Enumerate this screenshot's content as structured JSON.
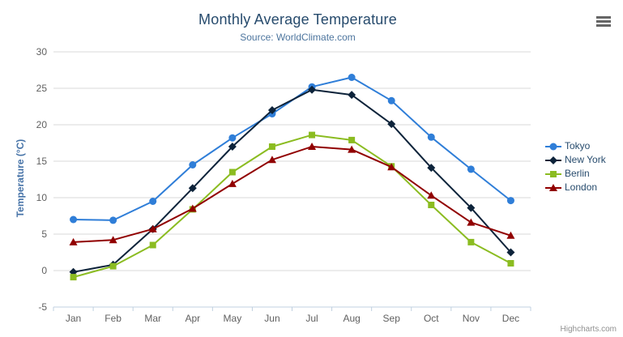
{
  "credits": "Highcharts.com",
  "export_menu_icon": "hamburger-icon",
  "chart_data": {
    "type": "line",
    "title": "Monthly Average Temperature",
    "subtitle": "Source: WorldClimate.com",
    "categories": [
      "Jan",
      "Feb",
      "Mar",
      "Apr",
      "May",
      "Jun",
      "Jul",
      "Aug",
      "Sep",
      "Oct",
      "Nov",
      "Dec"
    ],
    "series": [
      {
        "name": "Tokyo",
        "color": "#2f7ed8",
        "marker": "circle",
        "values": [
          7.0,
          6.9,
          9.5,
          14.5,
          18.2,
          21.5,
          25.2,
          26.5,
          23.3,
          18.3,
          13.9,
          9.6
        ]
      },
      {
        "name": "New York",
        "color": "#0d233a",
        "marker": "diamond",
        "values": [
          -0.2,
          0.8,
          5.7,
          11.3,
          17.0,
          22.0,
          24.8,
          24.1,
          20.1,
          14.1,
          8.6,
          2.5
        ]
      },
      {
        "name": "Berlin",
        "color": "#8bbc21",
        "marker": "square",
        "values": [
          -0.9,
          0.6,
          3.5,
          8.4,
          13.5,
          17.0,
          18.6,
          17.9,
          14.3,
          9.0,
          3.9,
          1.0
        ]
      },
      {
        "name": "London",
        "color": "#910000",
        "marker": "triangle",
        "values": [
          3.9,
          4.2,
          5.7,
          8.5,
          11.9,
          15.2,
          17.0,
          16.6,
          14.2,
          10.3,
          6.6,
          4.8
        ]
      }
    ],
    "xlabel": "",
    "ylabel": "Temperature (°C)",
    "ylim": [
      -5,
      30
    ],
    "ytick_step": 5,
    "grid": true,
    "legend_position": "right",
    "style": {
      "grid_color": "#d8d8d8",
      "axis_line_color": "#c0d0e0",
      "tick_label_color": "#606060",
      "title_color": "#274b6d",
      "subtitle_color": "#4d759e",
      "yaxis_title_color": "#4572a7",
      "legend_text_color": "#274b6d",
      "credits_color": "#909090"
    }
  }
}
